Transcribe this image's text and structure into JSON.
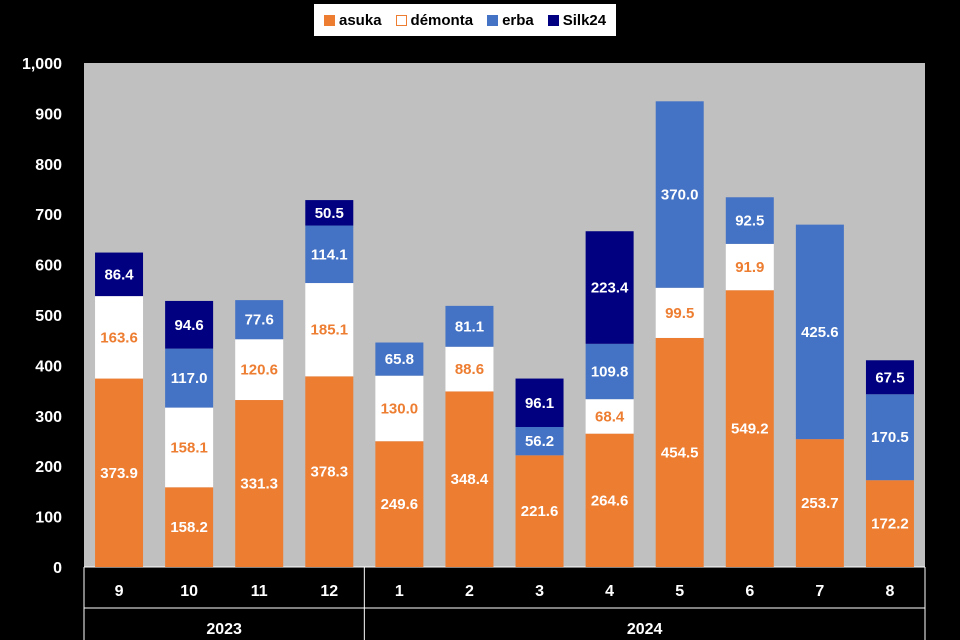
{
  "chart_data": {
    "type": "bar",
    "stacked": true,
    "title": "",
    "xlabel": "",
    "ylabel": "",
    "ylim": [
      0,
      1000
    ],
    "yticks": [
      "0",
      "100",
      "200",
      "300",
      "400",
      "500",
      "600",
      "700",
      "800",
      "900",
      "1,000"
    ],
    "categories": [
      "9",
      "10",
      "11",
      "12",
      "1",
      "2",
      "3",
      "4",
      "5",
      "6",
      "7",
      "8"
    ],
    "year_groups": [
      {
        "label": "2023",
        "count": 4
      },
      {
        "label": "2024",
        "count": 8
      }
    ],
    "series": [
      {
        "name": "asuka",
        "color": "#ED7D31",
        "label_color": "#FFFFFF",
        "values": [
          373.9,
          158.2,
          331.3,
          378.3,
          249.6,
          348.4,
          221.6,
          264.6,
          454.5,
          549.2,
          253.7,
          172.2
        ],
        "labels": [
          "373.9",
          "158.2",
          "331.3",
          "378.3",
          "249.6",
          "348.4",
          "221.6",
          "264.6",
          "454.5",
          "549.2",
          "253.7",
          "172.2"
        ]
      },
      {
        "name": "démonta",
        "color": "#FFFFFF",
        "label_color": "#ED7D31",
        "values": [
          163.6,
          158.1,
          120.6,
          185.1,
          130.0,
          88.6,
          0,
          68.4,
          99.5,
          91.9,
          0,
          0
        ],
        "labels": [
          "163.6",
          "158.1",
          "120.6",
          "185.1",
          "130.0",
          "88.6",
          "",
          "68.4",
          "99.5",
          "91.9",
          "",
          ""
        ]
      },
      {
        "name": "erba",
        "color": "#4472C4",
        "label_color": "#FFFFFF",
        "values": [
          0,
          117.0,
          77.6,
          114.1,
          65.8,
          81.1,
          56.2,
          109.8,
          370.0,
          92.5,
          425.6,
          170.5
        ],
        "labels": [
          "",
          "117.0",
          "77.6",
          "114.1",
          "65.8",
          "81.1",
          "56.2",
          "109.8",
          "370.0",
          "92.5",
          "425.6",
          "170.5"
        ]
      },
      {
        "name": "Silk24",
        "color": "#000080",
        "label_color": "#FFFFFF",
        "values": [
          86.4,
          94.6,
          0,
          50.5,
          0,
          0,
          96.1,
          223.4,
          0,
          0,
          0,
          67.5
        ],
        "labels": [
          "86.4",
          "94.6",
          "",
          "50.5",
          "",
          "",
          "96.1",
          "223.4",
          "",
          "",
          "",
          "67.5"
        ]
      }
    ],
    "grid": false,
    "plot_background": "#C0C0C0",
    "legend_position": "top-center"
  }
}
